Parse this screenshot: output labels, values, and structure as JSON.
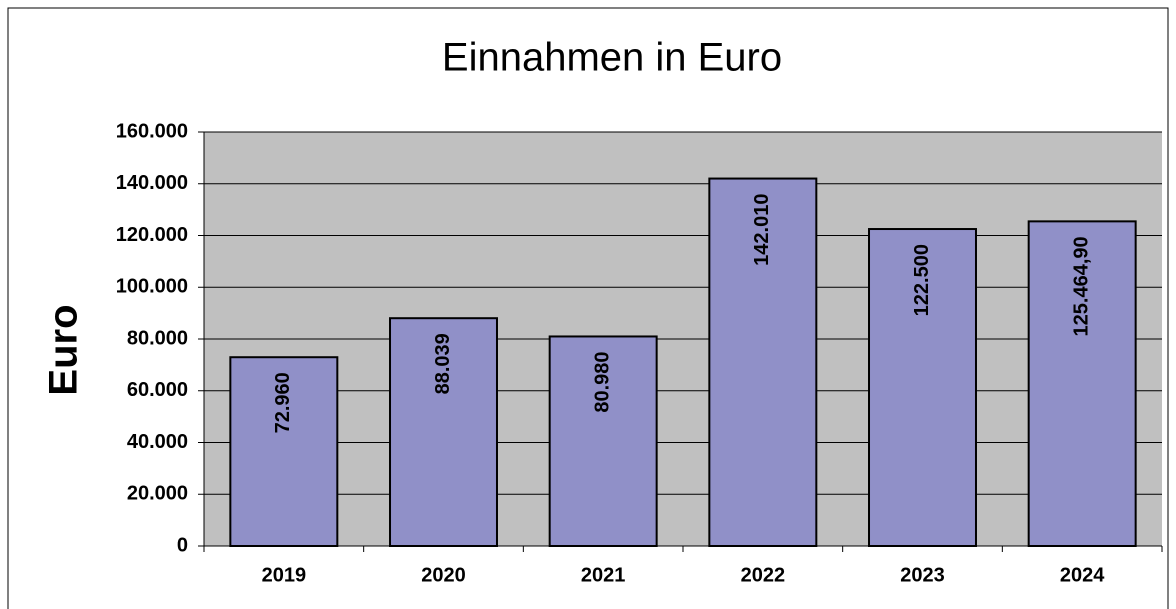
{
  "chart_data": {
    "type": "bar",
    "title": "Einnahmen in Euro",
    "y_label": "Euro",
    "categories": [
      "2019",
      "2020",
      "2021",
      "2022",
      "2023",
      "2024"
    ],
    "values": [
      72960,
      88039,
      80980,
      142010,
      122500,
      125464.9
    ],
    "value_labels": [
      "72.960",
      "88.039",
      "80.980",
      "142.010",
      "122.500",
      "125.464,90"
    ],
    "color": "#9090c8",
    "ylim": [
      0,
      160000
    ],
    "yticks": [
      0,
      {
        "value": 20000,
        "label": "20.000"
      },
      {
        "value": 40000,
        "label": "40.000"
      },
      {
        "value": 60000,
        "label": "60.000"
      },
      {
        "value": 80000,
        "label": "80.000"
      },
      {
        "value": 100000,
        "label": "100.000"
      },
      {
        "value": 120000,
        "label": "120.000"
      },
      {
        "value": 140000,
        "label": "140.000"
      },
      {
        "value": 160000,
        "label": "160.000"
      }
    ],
    "grid": true
  }
}
